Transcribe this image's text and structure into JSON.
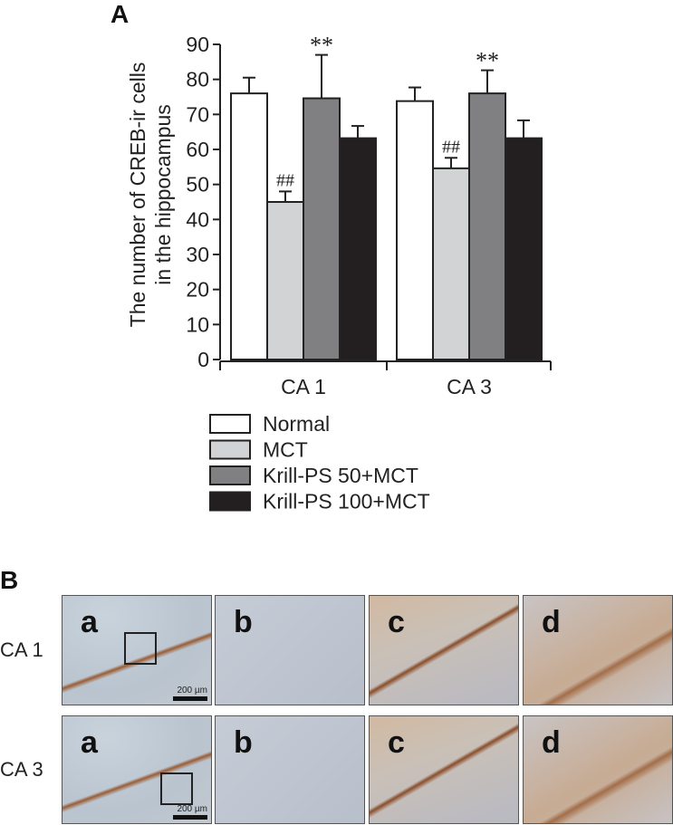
{
  "panel_a_label": "A",
  "panel_b_label": "B",
  "chart_data": {
    "type": "bar",
    "title": "",
    "xlabel": "",
    "ylabel": "The number of CREB-ir cells in the hippocampus",
    "ylabel_lines": [
      "The number of CREB-ir cells",
      "in the hippocampus"
    ],
    "ylim": [
      0,
      90
    ],
    "yticks": [
      0,
      10,
      20,
      30,
      40,
      50,
      60,
      70,
      80,
      90
    ],
    "categories": [
      "CA 1",
      "CA 3"
    ],
    "grid": false,
    "legend_placement": "bottom",
    "series": [
      {
        "name": "Normal",
        "color": "#ffffff",
        "values": [
          76,
          73.8
        ],
        "error": [
          4.5,
          3.9
        ],
        "annotations": [
          "",
          ""
        ]
      },
      {
        "name": "MCT",
        "color": "#d2d3d5",
        "values": [
          45,
          54.6
        ],
        "error": [
          3,
          3
        ],
        "annotations": [
          "##",
          "##"
        ]
      },
      {
        "name": "Krill-PS 50+MCT",
        "color": "#808083",
        "values": [
          74.6,
          76
        ],
        "error": [
          12.4,
          6.6
        ],
        "annotations": [
          "**",
          "**"
        ]
      },
      {
        "name": "Krill-PS 100+MCT",
        "color": "#231f20",
        "values": [
          63.2,
          63.2
        ],
        "error": [
          3.5,
          5.1
        ],
        "annotations": [
          "",
          ""
        ]
      }
    ]
  },
  "micrographs": {
    "rows": [
      {
        "label": "CA 1",
        "panels": [
          "a",
          "b",
          "c",
          "d"
        ]
      },
      {
        "label": "CA 3",
        "panels": [
          "a",
          "b",
          "c",
          "d"
        ]
      }
    ],
    "scale_bar": "200 µm"
  }
}
